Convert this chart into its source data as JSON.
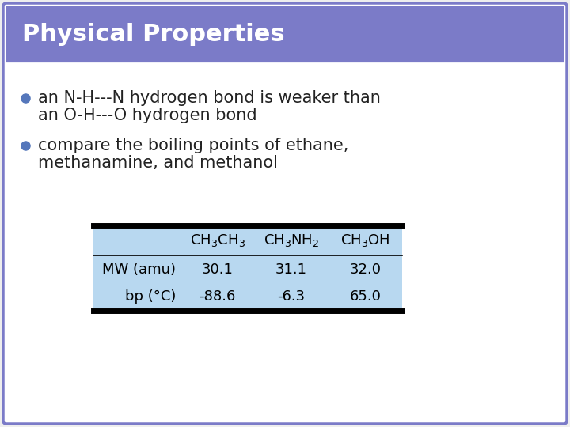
{
  "title": "Physical Properties",
  "title_bg_color": "#7B7BC8",
  "title_text_color": "#FFFFFF",
  "title_fontsize": 22,
  "body_bg_color": "#FFFFFF",
  "slide_border_color": "#7B7BC8",
  "slide_bg_color": "#FFFFFF",
  "bullet_color": "#5577BB",
  "bullet_text_color": "#222222",
  "bullet_fontsize": 15,
  "bullets": [
    [
      "an N-H---N hydrogen bond is weaker than",
      "an O-H---O hydrogen bond"
    ],
    [
      "compare the boiling points of ethane,",
      "methanamine, and methanol"
    ]
  ],
  "table_bg_color": "#B8D8F0",
  "table_fontsize": 13,
  "table_header_formulas": [
    "CH$_3$CH$_3$",
    "CH$_3$NH$_2$",
    "CH$_3$OH"
  ],
  "table_col0": [
    "MW (amu)",
    "bp (°C)"
  ],
  "table_data": [
    [
      "30.1",
      "31.1",
      "32.0"
    ],
    [
      "-88.6",
      "-6.3",
      "65.0"
    ]
  ],
  "fig_width": 7.2,
  "fig_height": 5.4
}
